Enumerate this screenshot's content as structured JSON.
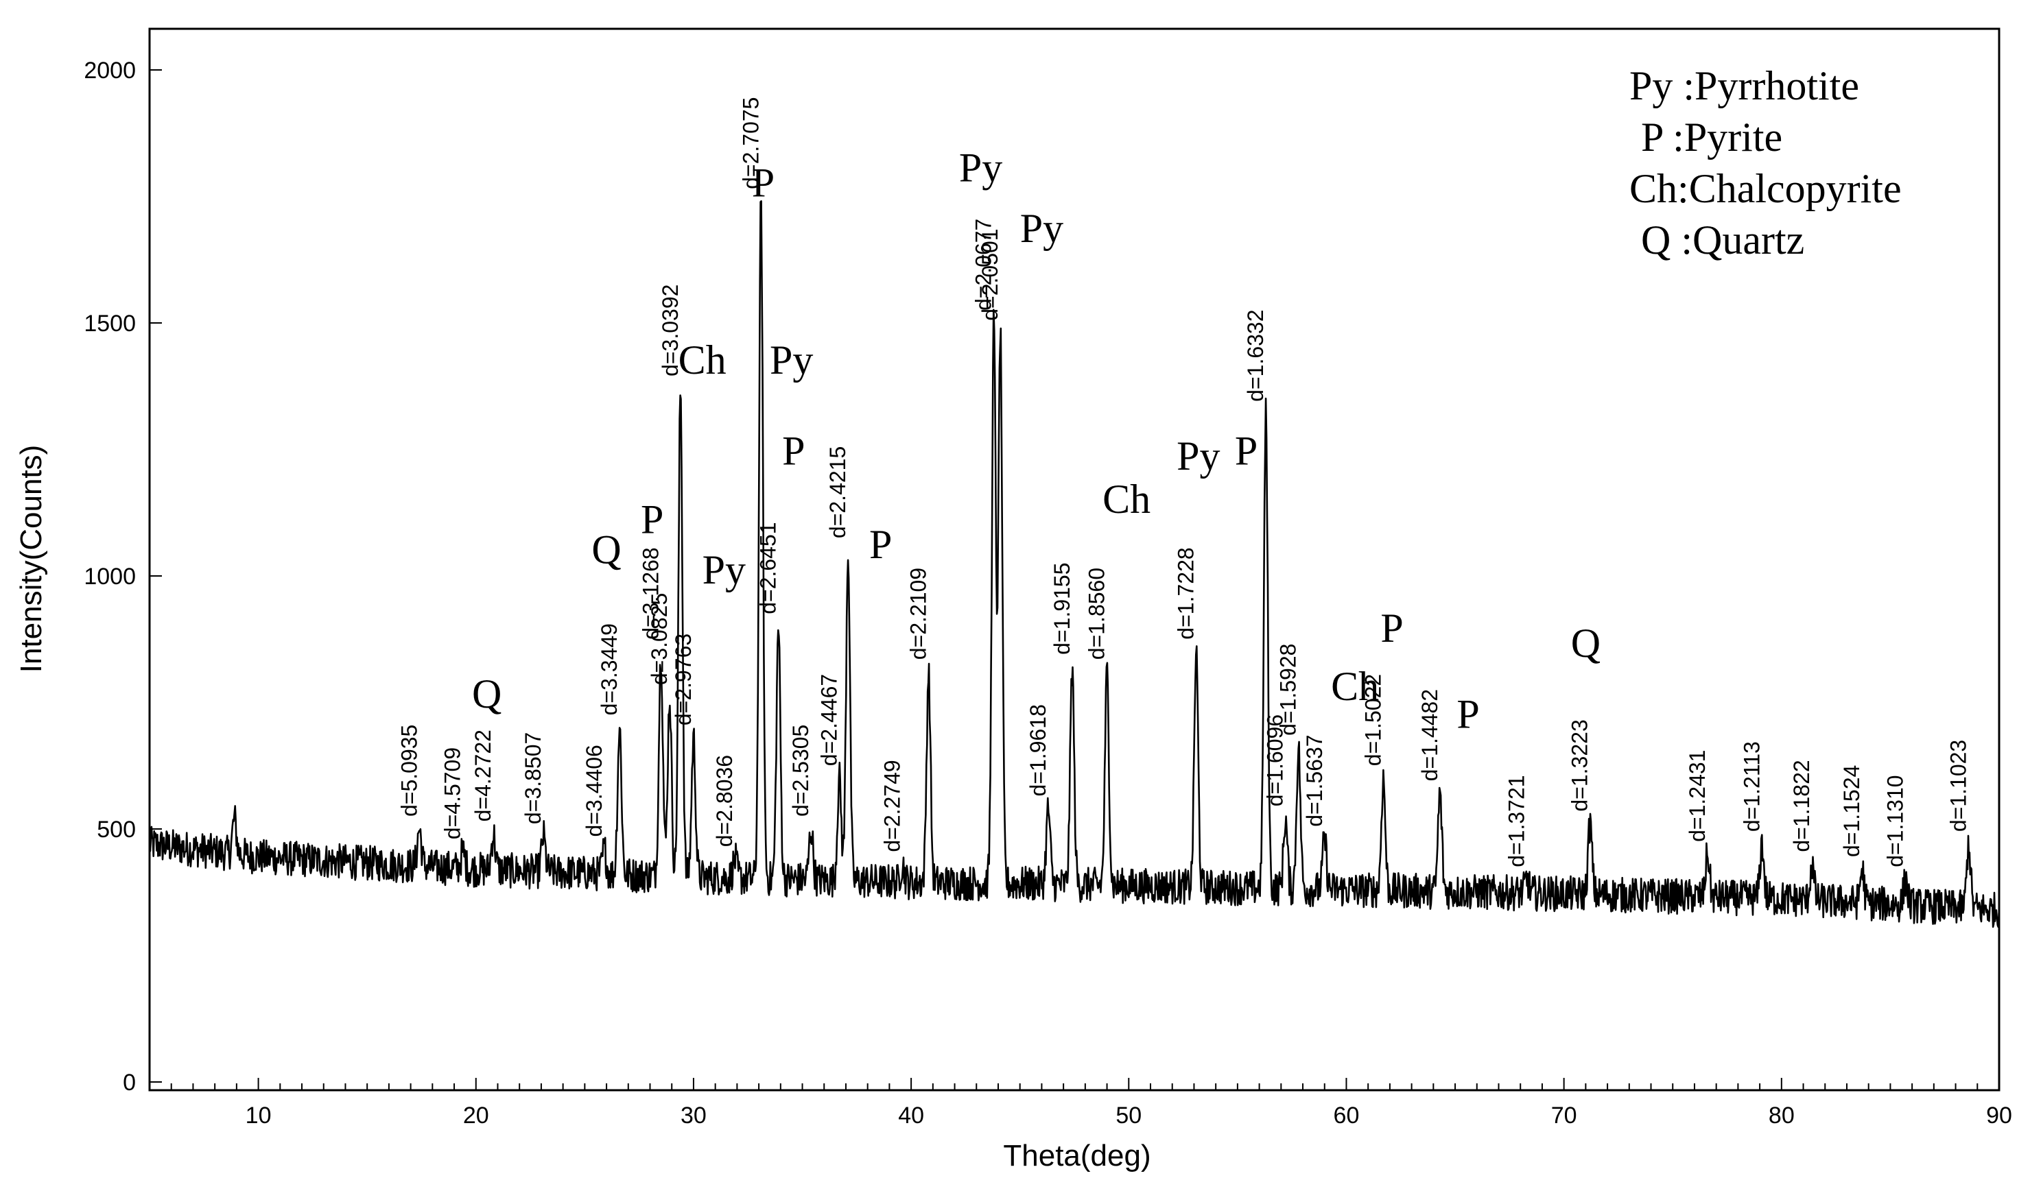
{
  "chart_data": {
    "type": "line",
    "title": "",
    "xlabel": "Theta(deg)",
    "ylabel": "Intensity(Counts)",
    "xlim": [
      5,
      90
    ],
    "ylim": [
      0,
      2000
    ],
    "x_ticks": [
      10,
      20,
      30,
      40,
      50,
      60,
      70,
      80,
      90
    ],
    "y_ticks": [
      0,
      500,
      1000,
      1500,
      2000
    ],
    "baseline": [
      [
        5,
        470
      ],
      [
        10,
        445
      ],
      [
        20,
        420
      ],
      [
        30,
        405
      ],
      [
        40,
        395
      ],
      [
        50,
        388
      ],
      [
        60,
        380
      ],
      [
        70,
        372
      ],
      [
        80,
        362
      ],
      [
        90,
        340
      ]
    ],
    "peaks": [
      {
        "x": 8.9,
        "y": 520,
        "d": ""
      },
      {
        "x": 17.4,
        "y": 500,
        "d": "d=5.0935"
      },
      {
        "x": 19.4,
        "y": 455,
        "d": "d=4.5709"
      },
      {
        "x": 20.8,
        "y": 490,
        "d": "d=4.2722"
      },
      {
        "x": 23.1,
        "y": 485,
        "d": "d=3.8507"
      },
      {
        "x": 25.9,
        "y": 460,
        "d": "d=3.4406"
      },
      {
        "x": 26.6,
        "y": 700,
        "d": "d=3.3449"
      },
      {
        "x": 28.5,
        "y": 850,
        "d": "d=3.1268"
      },
      {
        "x": 28.9,
        "y": 760,
        "d": "d=3.0825"
      },
      {
        "x": 29.4,
        "y": 1370,
        "d": "d=3.0392"
      },
      {
        "x": 30.0,
        "y": 680,
        "d": "d=2.9763"
      },
      {
        "x": 31.9,
        "y": 440,
        "d": "d=2.8036"
      },
      {
        "x": 33.1,
        "y": 1740,
        "d": "d=2.7075"
      },
      {
        "x": 33.9,
        "y": 900,
        "d": "d=2.6451"
      },
      {
        "x": 35.4,
        "y": 500,
        "d": "d=2.5305"
      },
      {
        "x": 36.7,
        "y": 600,
        "d": "d=2.4467"
      },
      {
        "x": 37.1,
        "y": 1050,
        "d": "d=2.4215"
      },
      {
        "x": 39.6,
        "y": 430,
        "d": "d=2.2749"
      },
      {
        "x": 40.8,
        "y": 810,
        "d": "d=2.2109"
      },
      {
        "x": 43.8,
        "y": 1500,
        "d": "d=2.0677"
      },
      {
        "x": 44.1,
        "y": 1480,
        "d": "d=2.0501"
      },
      {
        "x": 46.3,
        "y": 540,
        "d": "d=1.9618"
      },
      {
        "x": 47.4,
        "y": 820,
        "d": "d=1.9155"
      },
      {
        "x": 49.0,
        "y": 810,
        "d": "d=1.8560"
      },
      {
        "x": 53.1,
        "y": 850,
        "d": "d=1.7228"
      },
      {
        "x": 56.3,
        "y": 1320,
        "d": "d=1.6332"
      },
      {
        "x": 57.2,
        "y": 520,
        "d": "d=1.6096"
      },
      {
        "x": 57.8,
        "y": 660,
        "d": "d=1.5928"
      },
      {
        "x": 59.0,
        "y": 480,
        "d": "d=1.5637"
      },
      {
        "x": 61.7,
        "y": 600,
        "d": "d=1.5022"
      },
      {
        "x": 64.3,
        "y": 570,
        "d": "d=1.4482"
      },
      {
        "x": 68.3,
        "y": 400,
        "d": "d=1.3721"
      },
      {
        "x": 71.2,
        "y": 510,
        "d": "d=1.3223"
      },
      {
        "x": 76.6,
        "y": 450,
        "d": "d=1.2431"
      },
      {
        "x": 79.1,
        "y": 470,
        "d": "d=1.2113"
      },
      {
        "x": 81.4,
        "y": 430,
        "d": "d=1.1822"
      },
      {
        "x": 83.7,
        "y": 420,
        "d": "d=1.1524"
      },
      {
        "x": 85.7,
        "y": 400,
        "d": "d=1.1310"
      },
      {
        "x": 88.6,
        "y": 470,
        "d": "d=1.1023"
      }
    ],
    "phase_annotations": [
      {
        "label": "Q",
        "x": 20.5,
        "y": 740
      },
      {
        "label": "Q",
        "x": 26.0,
        "y": 1025
      },
      {
        "label": "P",
        "x": 28.1,
        "y": 1085
      },
      {
        "label": "Ch",
        "x": 30.4,
        "y": 1400
      },
      {
        "label": "Py",
        "x": 31.4,
        "y": 985
      },
      {
        "label": "P",
        "x": 33.2,
        "y": 1750
      },
      {
        "label": "Py",
        "x": 34.5,
        "y": 1400
      },
      {
        "label": "P",
        "x": 34.6,
        "y": 1220
      },
      {
        "label": "P",
        "x": 38.6,
        "y": 1035
      },
      {
        "label": "Py",
        "x": 43.2,
        "y": 1780
      },
      {
        "label": "Py",
        "x": 46.0,
        "y": 1660
      },
      {
        "label": "Ch",
        "x": 49.9,
        "y": 1125
      },
      {
        "label": "Py",
        "x": 53.2,
        "y": 1210
      },
      {
        "label": "P",
        "x": 55.4,
        "y": 1220
      },
      {
        "label": "Ch",
        "x": 60.4,
        "y": 755
      },
      {
        "label": "P",
        "x": 62.1,
        "y": 870
      },
      {
        "label": "P",
        "x": 65.6,
        "y": 700
      },
      {
        "label": "Q",
        "x": 71.0,
        "y": 840
      }
    ],
    "legend": {
      "position": "top-right",
      "entries": [
        "Py :Pyrrhotite",
        "P :Pyrite",
        "Ch:Chalcopyrite",
        "Q :Quartz"
      ]
    }
  }
}
